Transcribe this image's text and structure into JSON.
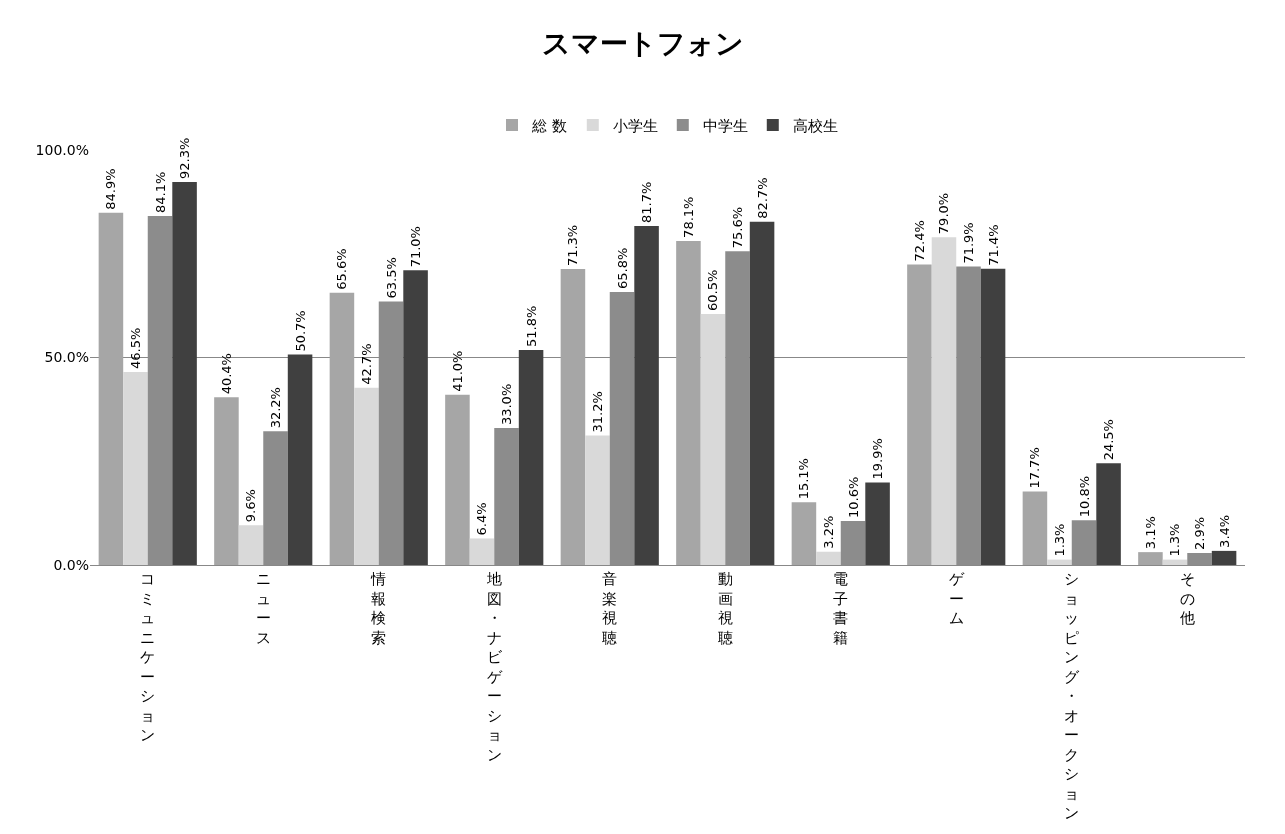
{
  "chart_data": {
    "type": "bar",
    "title": "スマートフォン",
    "categories": [
      "コミュニケーション",
      "ニュース",
      "情報検索",
      "地図・ナビゲーション",
      "音楽視聴",
      "動画視聴",
      "電子書籍",
      "ゲーム",
      "ショッピング・オークション",
      "その他"
    ],
    "series": [
      {
        "name": "総 数",
        "color": "#a6a6a6",
        "values": [
          84.9,
          40.4,
          65.6,
          41.0,
          71.3,
          78.1,
          15.1,
          72.4,
          17.7,
          3.1
        ],
        "value_labels": [
          "84.9%",
          "40.4%",
          "65.6%",
          "41.0%",
          "71.3%",
          "78.1%",
          "15.1%",
          "72.4%",
          "17.7%",
          "3.1%"
        ]
      },
      {
        "name": "小学生",
        "color": "#d9d9d9",
        "values": [
          46.5,
          9.6,
          42.7,
          6.4,
          31.2,
          60.5,
          3.2,
          79.0,
          1.3,
          1.3
        ],
        "value_labels": [
          "46.5%",
          "9.6%",
          "42.7%",
          "6.4%",
          "31.2%",
          "60.5%",
          "3.2%",
          "79.0%",
          "1.3%",
          "1.3%"
        ]
      },
      {
        "name": "中学生",
        "color": "#8c8c8c",
        "values": [
          84.1,
          32.2,
          63.5,
          33.0,
          65.8,
          75.6,
          10.6,
          71.9,
          10.8,
          2.9
        ],
        "value_labels": [
          "84.1%",
          "32.2%",
          "63.5%",
          "33.0%",
          "65.8%",
          "75.6%",
          "10.6%",
          "71.9%",
          "10.8%",
          "2.9%"
        ]
      },
      {
        "name": "高校生",
        "color": "#404040",
        "values": [
          92.3,
          50.7,
          71.0,
          51.8,
          81.7,
          82.7,
          19.9,
          71.4,
          24.5,
          3.4
        ],
        "value_labels": [
          "92.3%",
          "50.7%",
          "71.0%",
          "51.8%",
          "81.7%",
          "82.7%",
          "19.9%",
          "71.4%",
          "24.5%",
          "3.4%"
        ]
      }
    ],
    "ylim": [
      0,
      100
    ],
    "yticks": [
      {
        "value": 0,
        "label": "0.0%"
      },
      {
        "value": 50,
        "label": "50.0%"
      },
      {
        "value": 100,
        "label": "100.0%"
      }
    ],
    "grid": "y",
    "legend": "top"
  }
}
